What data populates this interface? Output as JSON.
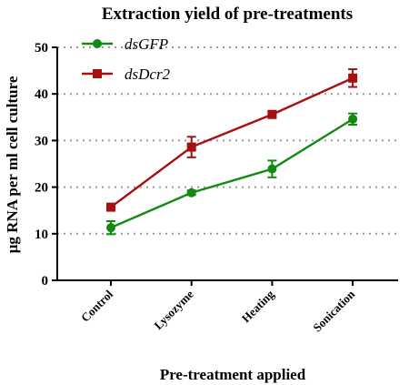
{
  "chart_data": {
    "type": "line",
    "title": "Extraction yield of pre-treatments",
    "xlabel": "Pre-treatment applied",
    "ylabel": "µg RNA per ml cell culture",
    "categories": [
      "Control",
      "Lysozyme",
      "Heating",
      "Sonication"
    ],
    "ylim": [
      0,
      50
    ],
    "yticks": [
      "0",
      "10",
      "20",
      "30",
      "40",
      "50"
    ],
    "grid": "horizontal dotted",
    "legend_position": "top-left",
    "series": [
      {
        "name": "dsGFP",
        "color": "#128A12",
        "marker": "circle",
        "values": [
          11.3,
          18.8,
          23.9,
          34.6
        ],
        "errors": [
          1.4,
          0.5,
          1.8,
          1.2
        ]
      },
      {
        "name": "dsDcr2",
        "color": "#A80F0F",
        "marker": "square",
        "values": [
          15.7,
          28.6,
          35.6,
          43.4
        ],
        "errors": [
          0.5,
          2.2,
          0.5,
          1.9
        ]
      }
    ]
  }
}
